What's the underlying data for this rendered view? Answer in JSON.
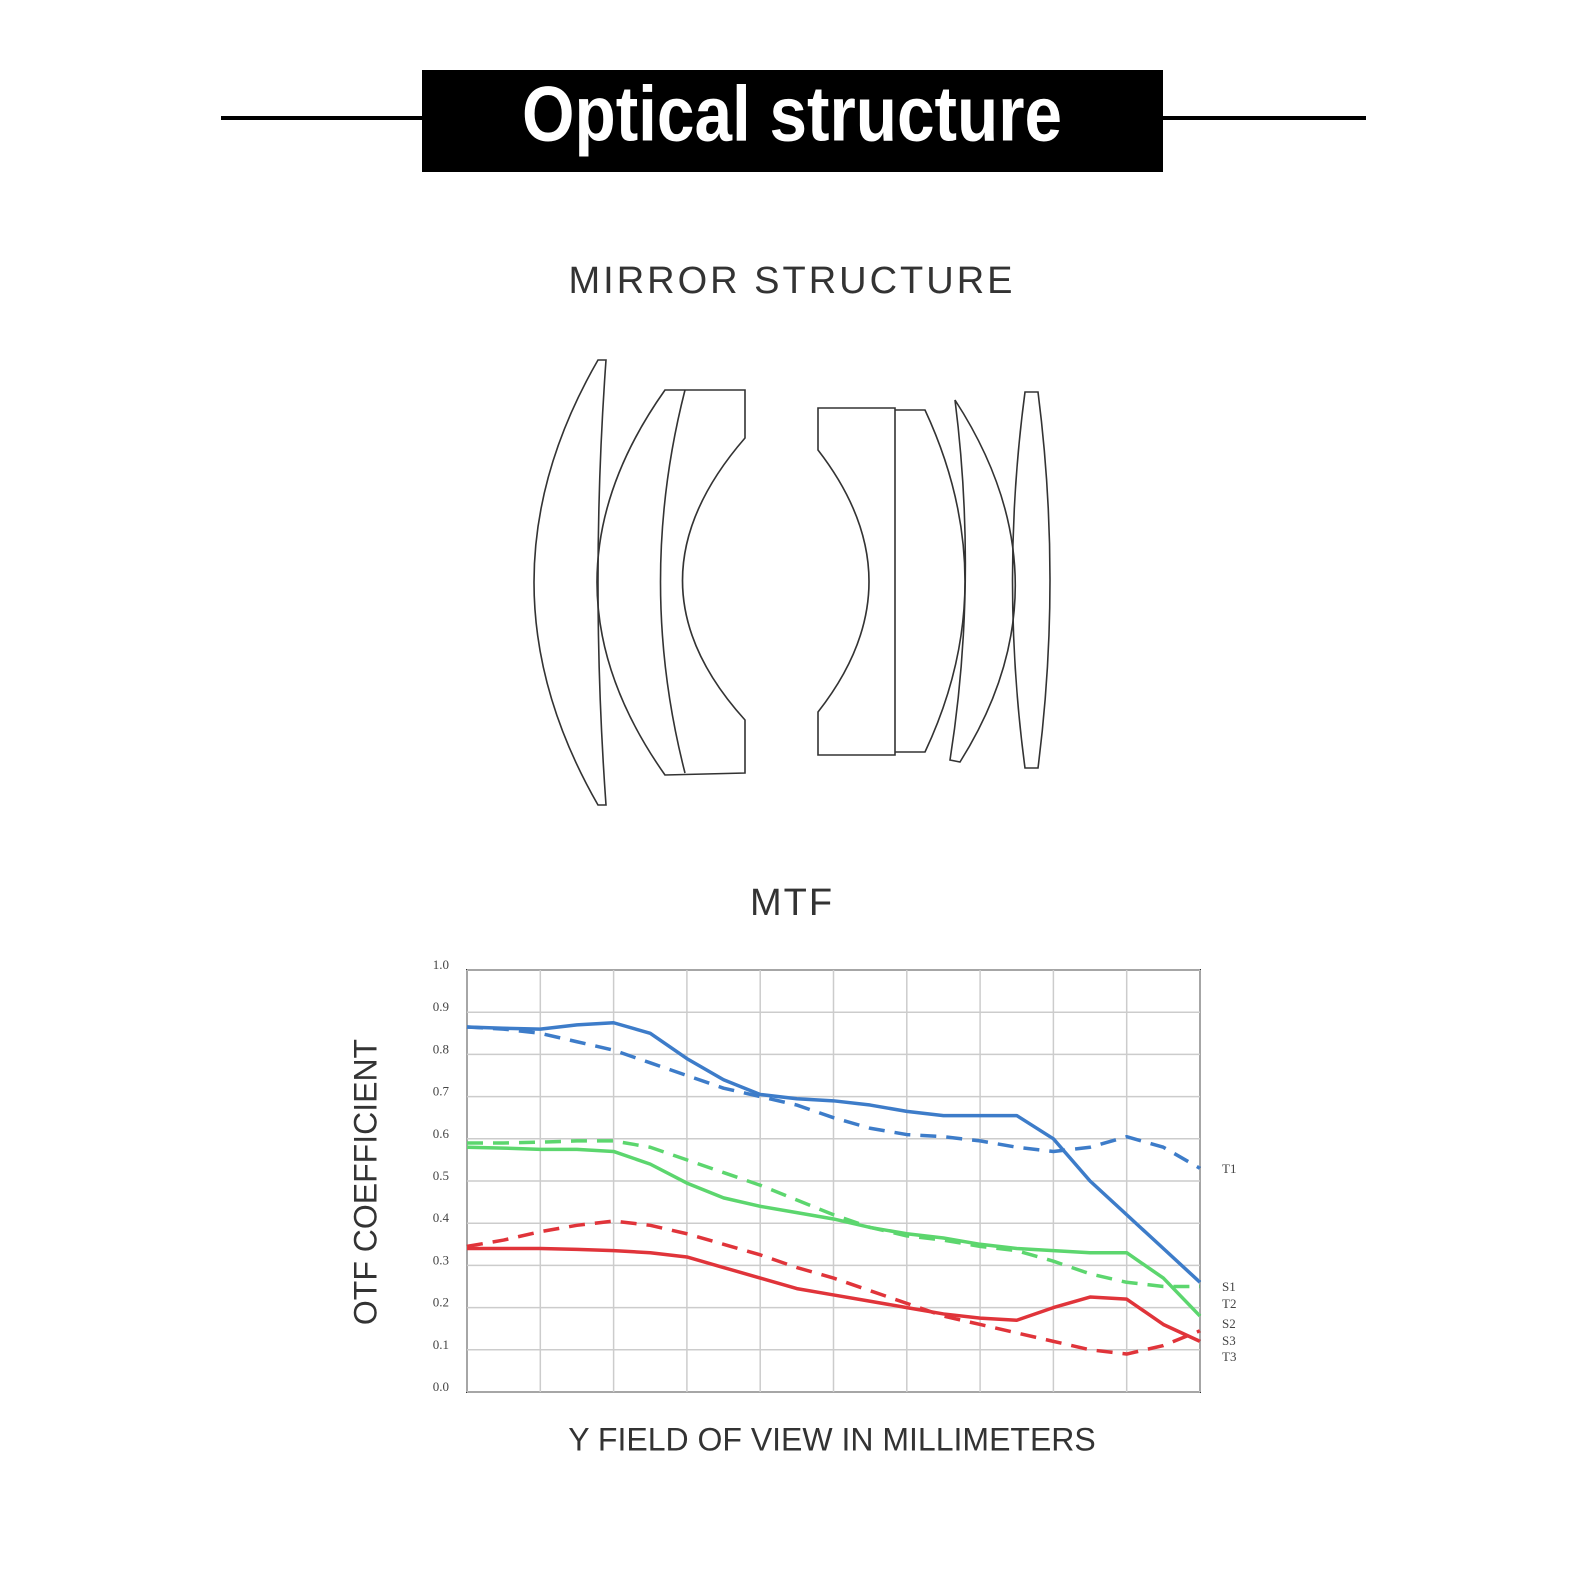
{
  "header": {
    "title": "Optical structure"
  },
  "subtitle": "MIRROR STRUCTURE",
  "chart_data": {
    "type": "line",
    "title": "MTF",
    "xlabel": "Y FIELD OF VIEW IN MILLIMETERS",
    "ylabel": "OTF COEFFICIENT",
    "x": [
      0,
      0.5,
      1,
      1.5,
      2,
      2.5,
      3,
      3.5,
      4,
      4.5,
      5,
      5.5,
      6,
      6.5,
      7,
      7.5,
      8,
      8.5,
      9,
      9.5,
      10
    ],
    "xlim": [
      0,
      10
    ],
    "ylim": [
      0,
      1
    ],
    "yticks": [
      {
        "value": 0,
        "label": "0.0"
      },
      0.1,
      0.2,
      0.3,
      0.4,
      0.5,
      0.6,
      0.7,
      0.8,
      0.9,
      {
        "value": 1,
        "label": "1.0"
      }
    ],
    "grid": true,
    "series": [
      {
        "name": "T1",
        "color": "#3d7cc9",
        "dashed": true,
        "values": [
          0.865,
          0.86,
          0.85,
          0.83,
          0.81,
          0.78,
          0.75,
          0.72,
          0.7,
          0.68,
          0.65,
          0.625,
          0.61,
          0.605,
          0.595,
          0.58,
          0.57,
          0.58,
          0.605,
          0.58,
          0.53
        ]
      },
      {
        "name": "S1",
        "color": "#3d7cc9",
        "dashed": false,
        "values": [
          0.865,
          0.862,
          0.86,
          0.87,
          0.875,
          0.85,
          0.79,
          0.74,
          0.705,
          0.695,
          0.69,
          0.68,
          0.665,
          0.655,
          0.655,
          0.655,
          0.6,
          0.5,
          0.42,
          0.34,
          0.26
        ]
      },
      {
        "name": "T2",
        "color": "#5cd66e",
        "dashed": true,
        "values": [
          0.59,
          0.59,
          0.592,
          0.595,
          0.595,
          0.58,
          0.55,
          0.52,
          0.49,
          0.455,
          0.42,
          0.39,
          0.37,
          0.36,
          0.345,
          0.335,
          0.31,
          0.28,
          0.26,
          0.25,
          0.25
        ]
      },
      {
        "name": "S2",
        "color": "#5cd66e",
        "dashed": false,
        "values": [
          0.58,
          0.578,
          0.575,
          0.575,
          0.57,
          0.54,
          0.495,
          0.46,
          0.44,
          0.425,
          0.41,
          0.39,
          0.375,
          0.365,
          0.35,
          0.34,
          0.335,
          0.33,
          0.33,
          0.27,
          0.18
        ]
      },
      {
        "name": "S3",
        "color": "#e0343a",
        "dashed": false,
        "values": [
          0.34,
          0.34,
          0.34,
          0.338,
          0.335,
          0.33,
          0.32,
          0.295,
          0.27,
          0.245,
          0.23,
          0.215,
          0.2,
          0.185,
          0.175,
          0.17,
          0.2,
          0.225,
          0.22,
          0.16,
          0.12
        ]
      },
      {
        "name": "T3",
        "color": "#e0343a",
        "dashed": true,
        "values": [
          0.345,
          0.36,
          0.38,
          0.395,
          0.405,
          0.395,
          0.375,
          0.35,
          0.325,
          0.295,
          0.27,
          0.24,
          0.21,
          0.18,
          0.16,
          0.14,
          0.12,
          0.1,
          0.09,
          0.11,
          0.145
        ]
      }
    ]
  }
}
